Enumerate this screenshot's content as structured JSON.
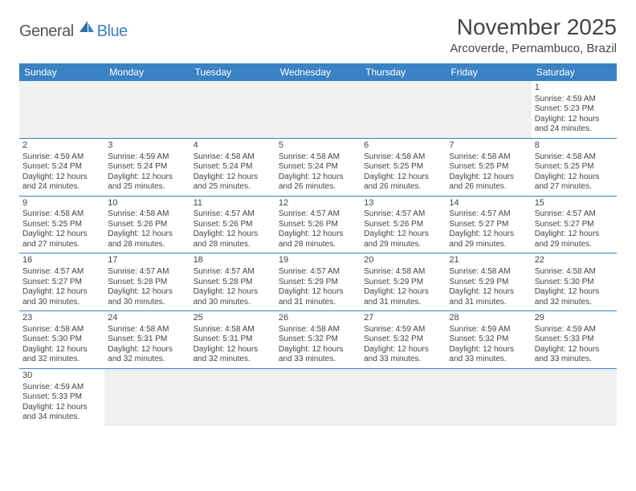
{
  "logo": {
    "general": "General",
    "blue": "Blue"
  },
  "title": "November 2025",
  "location": "Arcoverde, Pernambuco, Brazil",
  "colors": {
    "header_bg": "#3b82c4",
    "header_fg": "#ffffff",
    "grid_border": "#3b82c4",
    "empty_bg": "#f0f0f0",
    "text": "#444444"
  },
  "day_headers": [
    "Sunday",
    "Monday",
    "Tuesday",
    "Wednesday",
    "Thursday",
    "Friday",
    "Saturday"
  ],
  "weeks": [
    [
      null,
      null,
      null,
      null,
      null,
      null,
      {
        "n": "1",
        "sr": "Sunrise: 4:59 AM",
        "ss": "Sunset: 5:23 PM",
        "d1": "Daylight: 12 hours",
        "d2": "and 24 minutes."
      }
    ],
    [
      {
        "n": "2",
        "sr": "Sunrise: 4:59 AM",
        "ss": "Sunset: 5:24 PM",
        "d1": "Daylight: 12 hours",
        "d2": "and 24 minutes."
      },
      {
        "n": "3",
        "sr": "Sunrise: 4:59 AM",
        "ss": "Sunset: 5:24 PM",
        "d1": "Daylight: 12 hours",
        "d2": "and 25 minutes."
      },
      {
        "n": "4",
        "sr": "Sunrise: 4:58 AM",
        "ss": "Sunset: 5:24 PM",
        "d1": "Daylight: 12 hours",
        "d2": "and 25 minutes."
      },
      {
        "n": "5",
        "sr": "Sunrise: 4:58 AM",
        "ss": "Sunset: 5:24 PM",
        "d1": "Daylight: 12 hours",
        "d2": "and 26 minutes."
      },
      {
        "n": "6",
        "sr": "Sunrise: 4:58 AM",
        "ss": "Sunset: 5:25 PM",
        "d1": "Daylight: 12 hours",
        "d2": "and 26 minutes."
      },
      {
        "n": "7",
        "sr": "Sunrise: 4:58 AM",
        "ss": "Sunset: 5:25 PM",
        "d1": "Daylight: 12 hours",
        "d2": "and 26 minutes."
      },
      {
        "n": "8",
        "sr": "Sunrise: 4:58 AM",
        "ss": "Sunset: 5:25 PM",
        "d1": "Daylight: 12 hours",
        "d2": "and 27 minutes."
      }
    ],
    [
      {
        "n": "9",
        "sr": "Sunrise: 4:58 AM",
        "ss": "Sunset: 5:25 PM",
        "d1": "Daylight: 12 hours",
        "d2": "and 27 minutes."
      },
      {
        "n": "10",
        "sr": "Sunrise: 4:58 AM",
        "ss": "Sunset: 5:26 PM",
        "d1": "Daylight: 12 hours",
        "d2": "and 28 minutes."
      },
      {
        "n": "11",
        "sr": "Sunrise: 4:57 AM",
        "ss": "Sunset: 5:26 PM",
        "d1": "Daylight: 12 hours",
        "d2": "and 28 minutes."
      },
      {
        "n": "12",
        "sr": "Sunrise: 4:57 AM",
        "ss": "Sunset: 5:26 PM",
        "d1": "Daylight: 12 hours",
        "d2": "and 28 minutes."
      },
      {
        "n": "13",
        "sr": "Sunrise: 4:57 AM",
        "ss": "Sunset: 5:26 PM",
        "d1": "Daylight: 12 hours",
        "d2": "and 29 minutes."
      },
      {
        "n": "14",
        "sr": "Sunrise: 4:57 AM",
        "ss": "Sunset: 5:27 PM",
        "d1": "Daylight: 12 hours",
        "d2": "and 29 minutes."
      },
      {
        "n": "15",
        "sr": "Sunrise: 4:57 AM",
        "ss": "Sunset: 5:27 PM",
        "d1": "Daylight: 12 hours",
        "d2": "and 29 minutes."
      }
    ],
    [
      {
        "n": "16",
        "sr": "Sunrise: 4:57 AM",
        "ss": "Sunset: 5:27 PM",
        "d1": "Daylight: 12 hours",
        "d2": "and 30 minutes."
      },
      {
        "n": "17",
        "sr": "Sunrise: 4:57 AM",
        "ss": "Sunset: 5:28 PM",
        "d1": "Daylight: 12 hours",
        "d2": "and 30 minutes."
      },
      {
        "n": "18",
        "sr": "Sunrise: 4:57 AM",
        "ss": "Sunset: 5:28 PM",
        "d1": "Daylight: 12 hours",
        "d2": "and 30 minutes."
      },
      {
        "n": "19",
        "sr": "Sunrise: 4:57 AM",
        "ss": "Sunset: 5:29 PM",
        "d1": "Daylight: 12 hours",
        "d2": "and 31 minutes."
      },
      {
        "n": "20",
        "sr": "Sunrise: 4:58 AM",
        "ss": "Sunset: 5:29 PM",
        "d1": "Daylight: 12 hours",
        "d2": "and 31 minutes."
      },
      {
        "n": "21",
        "sr": "Sunrise: 4:58 AM",
        "ss": "Sunset: 5:29 PM",
        "d1": "Daylight: 12 hours",
        "d2": "and 31 minutes."
      },
      {
        "n": "22",
        "sr": "Sunrise: 4:58 AM",
        "ss": "Sunset: 5:30 PM",
        "d1": "Daylight: 12 hours",
        "d2": "and 32 minutes."
      }
    ],
    [
      {
        "n": "23",
        "sr": "Sunrise: 4:58 AM",
        "ss": "Sunset: 5:30 PM",
        "d1": "Daylight: 12 hours",
        "d2": "and 32 minutes."
      },
      {
        "n": "24",
        "sr": "Sunrise: 4:58 AM",
        "ss": "Sunset: 5:31 PM",
        "d1": "Daylight: 12 hours",
        "d2": "and 32 minutes."
      },
      {
        "n": "25",
        "sr": "Sunrise: 4:58 AM",
        "ss": "Sunset: 5:31 PM",
        "d1": "Daylight: 12 hours",
        "d2": "and 32 minutes."
      },
      {
        "n": "26",
        "sr": "Sunrise: 4:58 AM",
        "ss": "Sunset: 5:32 PM",
        "d1": "Daylight: 12 hours",
        "d2": "and 33 minutes."
      },
      {
        "n": "27",
        "sr": "Sunrise: 4:59 AM",
        "ss": "Sunset: 5:32 PM",
        "d1": "Daylight: 12 hours",
        "d2": "and 33 minutes."
      },
      {
        "n": "28",
        "sr": "Sunrise: 4:59 AM",
        "ss": "Sunset: 5:32 PM",
        "d1": "Daylight: 12 hours",
        "d2": "and 33 minutes."
      },
      {
        "n": "29",
        "sr": "Sunrise: 4:59 AM",
        "ss": "Sunset: 5:33 PM",
        "d1": "Daylight: 12 hours",
        "d2": "and 33 minutes."
      }
    ],
    [
      {
        "n": "30",
        "sr": "Sunrise: 4:59 AM",
        "ss": "Sunset: 5:33 PM",
        "d1": "Daylight: 12 hours",
        "d2": "and 34 minutes."
      },
      null,
      null,
      null,
      null,
      null,
      null
    ]
  ]
}
